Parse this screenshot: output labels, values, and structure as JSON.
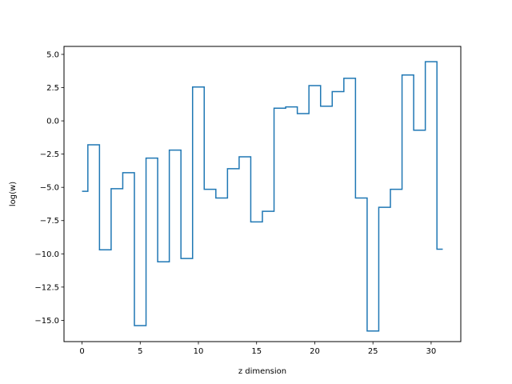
{
  "chart_data": {
    "type": "line",
    "drawstyle": "steps-mid",
    "title": "",
    "xlabel": "z dimension",
    "ylabel": "log(w)",
    "xlim": [
      -1.55,
      32.55
    ],
    "ylim": [
      -16.6,
      5.6
    ],
    "xticks": [
      0,
      5,
      10,
      15,
      20,
      25,
      30
    ],
    "xtick_labels": [
      "0",
      "5",
      "10",
      "15",
      "20",
      "25",
      "30"
    ],
    "yticks": [
      5.0,
      2.5,
      0.0,
      -2.5,
      -5.0,
      -7.5,
      -10.0,
      -12.5,
      -15.0
    ],
    "ytick_labels": [
      "5.0",
      "2.5",
      "0.0",
      "−2.5",
      "−5.0",
      "−7.5",
      "−10.0",
      "−12.5",
      "−15.0"
    ],
    "grid": false,
    "color": "#1f77b4",
    "series": [
      {
        "x": [
          0,
          1,
          2,
          3,
          4,
          5,
          6,
          7,
          8,
          9,
          10,
          11,
          12,
          13,
          14,
          15,
          16,
          17,
          18,
          19,
          20,
          21,
          22,
          23,
          24,
          25,
          26,
          27,
          28,
          29,
          30,
          31
        ],
        "y": [
          -5.3,
          -1.8,
          -9.7,
          -5.1,
          -3.9,
          -15.4,
          -2.8,
          -10.6,
          -2.2,
          -10.35,
          2.55,
          -5.15,
          -5.8,
          -3.6,
          -2.7,
          -7.6,
          -6.8,
          0.95,
          1.05,
          0.55,
          2.65,
          1.1,
          2.2,
          3.2,
          -5.8,
          -15.8,
          -6.5,
          -5.15,
          3.45,
          -0.7,
          4.45,
          -9.65
        ]
      }
    ]
  }
}
